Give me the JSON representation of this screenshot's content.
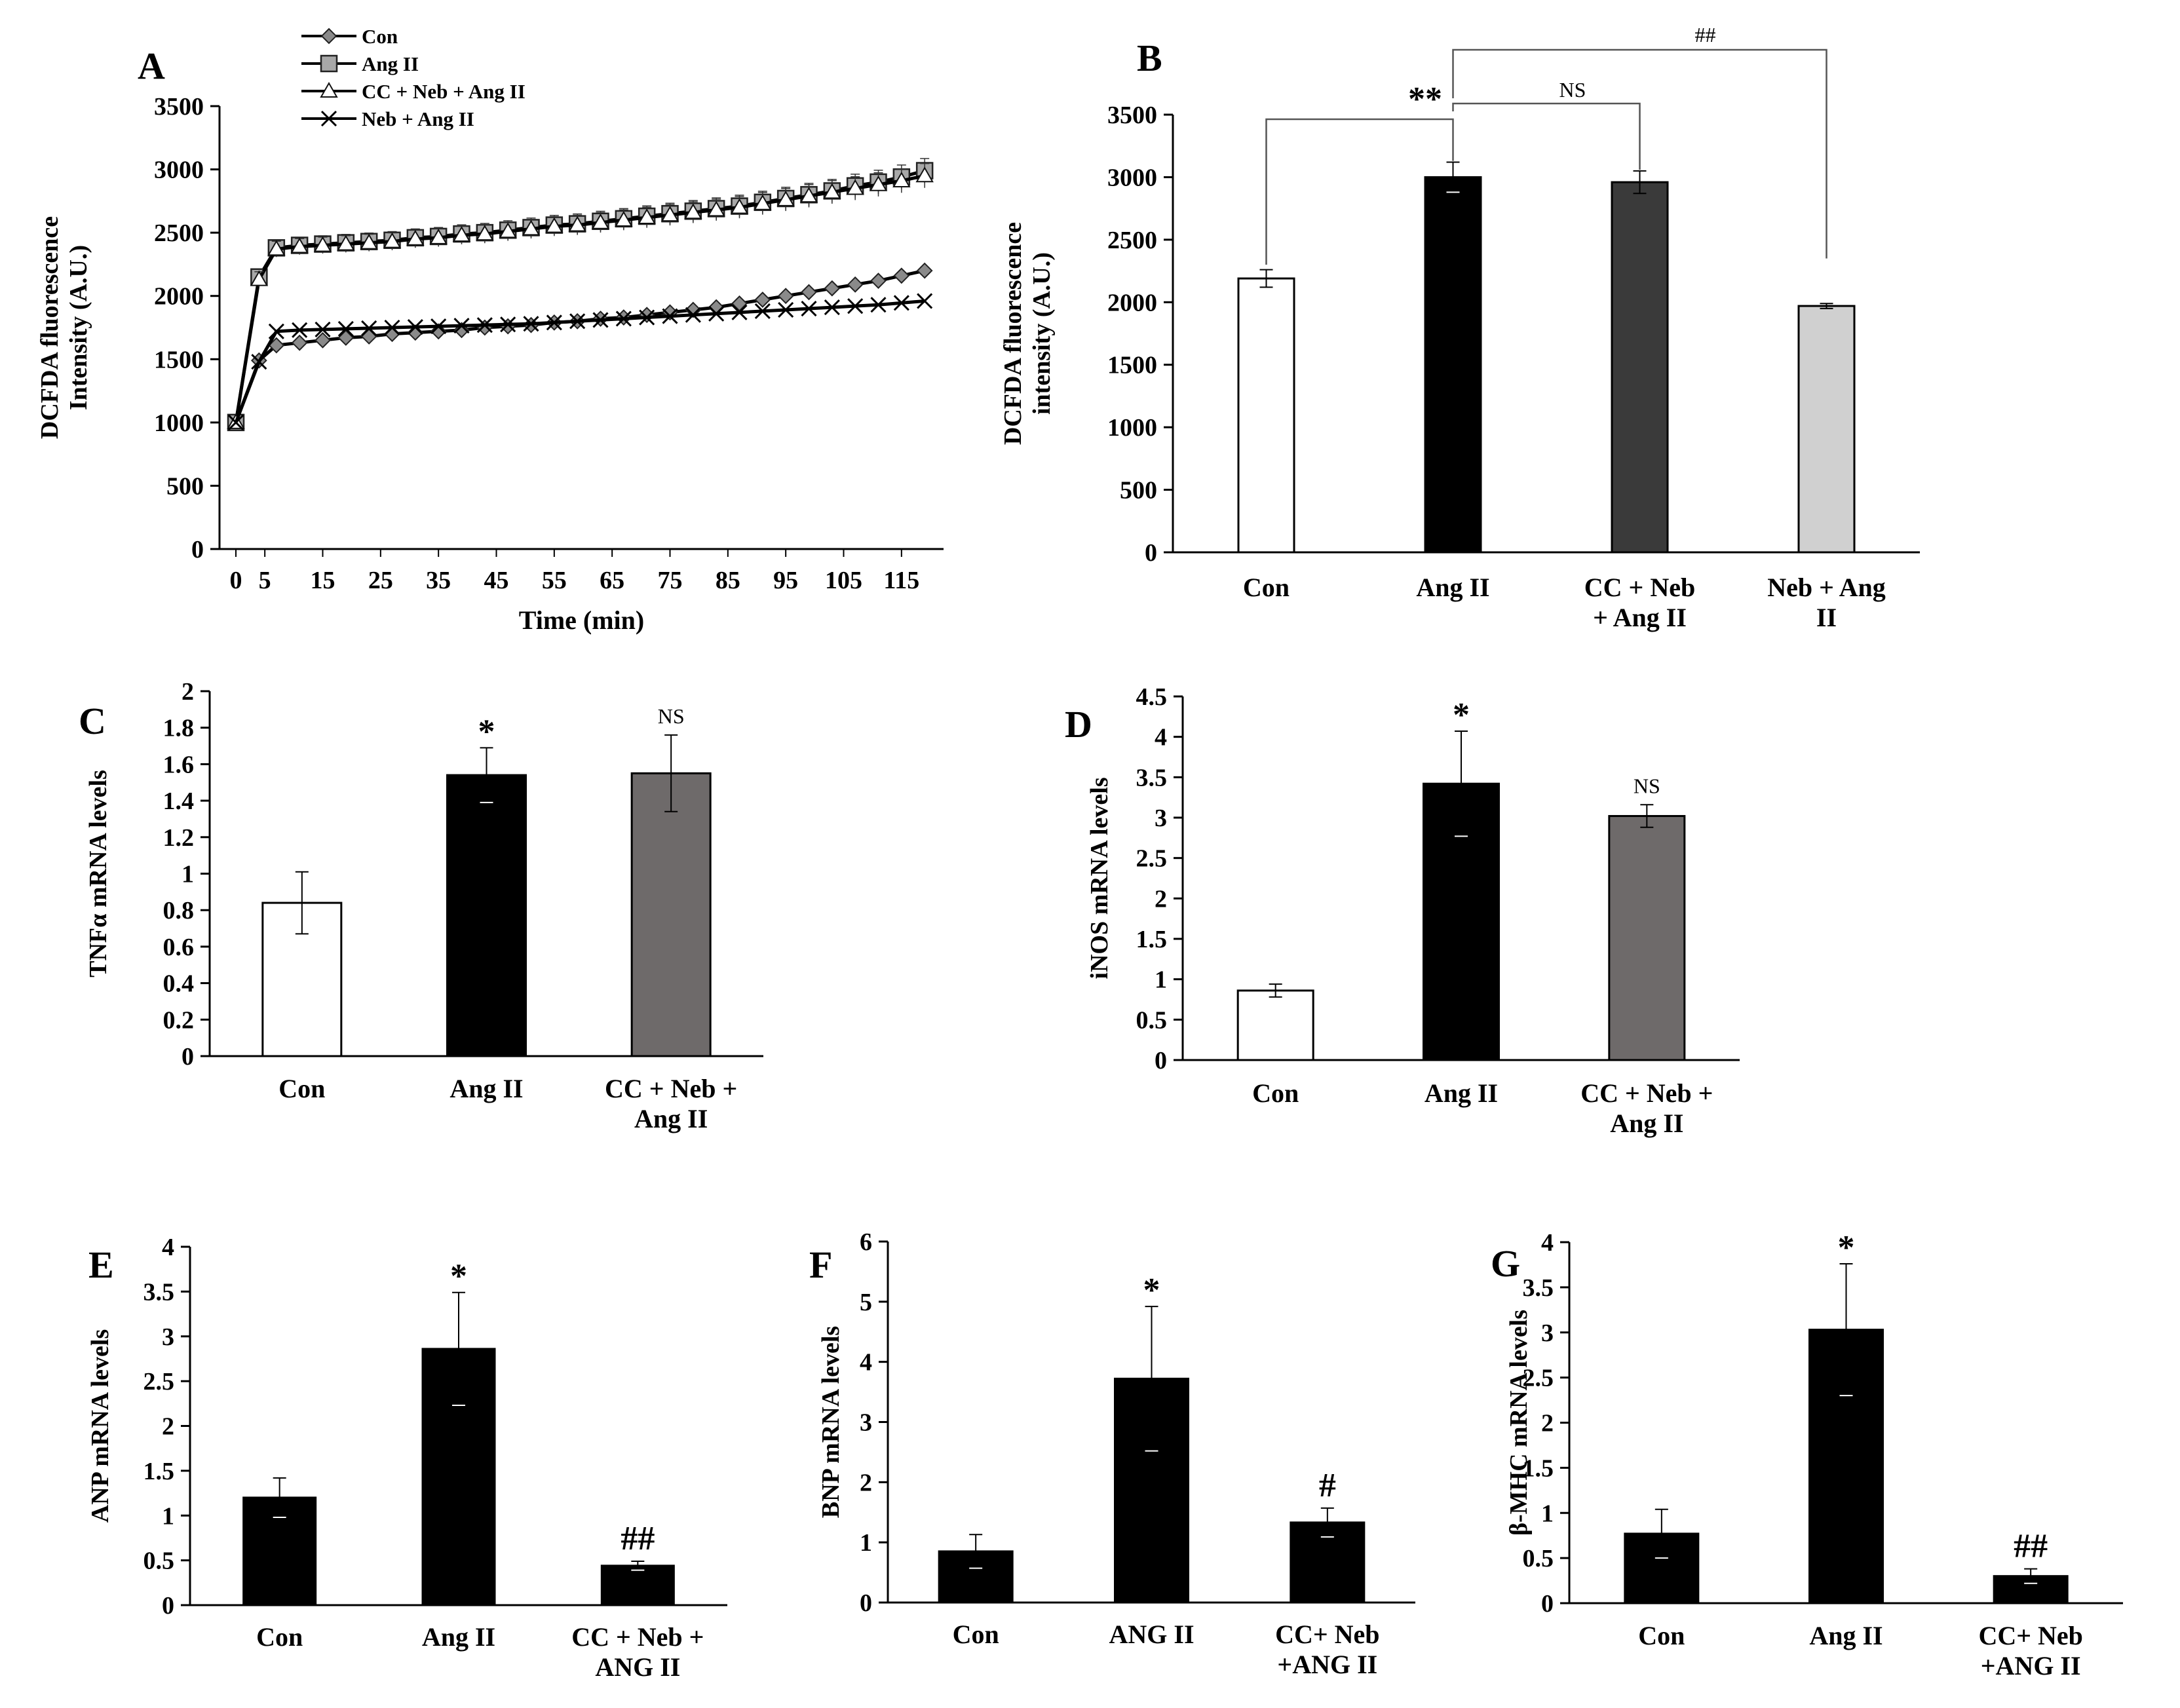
{
  "chart_data": [
    {
      "id": "A",
      "type": "line",
      "panel_label": "A",
      "title": "",
      "xlabel": "Time (min)",
      "ylabel": "DCFDA fluorescence Intensity (A.U.)",
      "ylabel_lines": [
        "DCFDA fluorescence",
        "Intensity (A.U.)"
      ],
      "xlim": [
        0,
        120
      ],
      "ylim": [
        0,
        3500
      ],
      "yticks": [
        0,
        500,
        1000,
        1500,
        2000,
        2500,
        3000,
        3500
      ],
      "xtick_labels": [
        "0",
        "5",
        "15",
        "25",
        "35",
        "45",
        "55",
        "65",
        "75",
        "85",
        "95",
        "105",
        "115"
      ],
      "x": [
        0,
        4,
        7,
        11,
        15,
        19,
        23,
        27,
        31,
        35,
        39,
        43,
        47,
        51,
        55,
        59,
        63,
        67,
        71,
        75,
        79,
        83,
        87,
        91,
        95,
        99,
        103,
        107,
        111,
        115,
        119
      ],
      "legend": [
        "Con",
        "Ang II",
        "CC + Neb + Ang II",
        "Neb + Ang II"
      ],
      "legend_position": "top-left",
      "series": [
        {
          "name": "Con",
          "marker": "diamond",
          "values": [
            1000,
            1490,
            1610,
            1630,
            1650,
            1670,
            1680,
            1700,
            1710,
            1720,
            1730,
            1750,
            1760,
            1770,
            1790,
            1800,
            1820,
            1830,
            1850,
            1870,
            1890,
            1910,
            1940,
            1970,
            2000,
            2030,
            2060,
            2090,
            2120,
            2160,
            2200
          ]
        },
        {
          "name": "Ang II",
          "marker": "square",
          "values": [
            1000,
            2150,
            2380,
            2400,
            2410,
            2420,
            2430,
            2440,
            2460,
            2470,
            2490,
            2500,
            2520,
            2540,
            2560,
            2570,
            2590,
            2610,
            2630,
            2650,
            2670,
            2690,
            2710,
            2740,
            2770,
            2800,
            2830,
            2870,
            2900,
            2940,
            2990
          ]
        },
        {
          "name": "CC + Neb + Ang II",
          "marker": "triangle",
          "values": [
            1000,
            2130,
            2370,
            2390,
            2400,
            2410,
            2420,
            2430,
            2450,
            2460,
            2480,
            2490,
            2510,
            2530,
            2550,
            2560,
            2580,
            2600,
            2620,
            2640,
            2660,
            2680,
            2700,
            2730,
            2760,
            2790,
            2820,
            2850,
            2880,
            2910,
            2950
          ]
        },
        {
          "name": "Neb + Ang II",
          "marker": "x",
          "values": [
            1000,
            1480,
            1720,
            1730,
            1735,
            1740,
            1745,
            1750,
            1755,
            1760,
            1765,
            1770,
            1775,
            1780,
            1790,
            1800,
            1810,
            1820,
            1830,
            1840,
            1850,
            1860,
            1870,
            1880,
            1890,
            1900,
            1910,
            1920,
            1930,
            1945,
            1960
          ]
        }
      ]
    },
    {
      "id": "B",
      "type": "bar",
      "panel_label": "B",
      "ylabel": "DCFDA fluorescence intensity (A.U.)",
      "ylabel_lines": [
        "DCFDA fluorescence",
        "intensity (A.U.)"
      ],
      "categories": [
        "Con",
        "Ang II",
        "CC + Neb + Ang II",
        "Neb + Ang II"
      ],
      "category_lines": [
        [
          "Con"
        ],
        [
          "Ang II"
        ],
        [
          "CC +  Neb",
          "+ Ang II"
        ],
        [
          "Neb + Ang",
          "II"
        ]
      ],
      "values": [
        2190,
        3000,
        2960,
        1970
      ],
      "errors": [
        70,
        120,
        90,
        20
      ],
      "colors": [
        "#ffffff",
        "#000000",
        "#3a3a3a",
        "#d0d0d0"
      ],
      "ylim": [
        0,
        3500
      ],
      "yticks": [
        0,
        500,
        1000,
        1500,
        2000,
        2500,
        3000,
        3500
      ],
      "annotations": [
        "**",
        "NS",
        "##"
      ]
    },
    {
      "id": "C",
      "type": "bar",
      "panel_label": "C",
      "ylabel": "TNFα mRNA levels",
      "categories": [
        "Con",
        "Ang II",
        "CC + Neb + Ang II"
      ],
      "category_lines": [
        [
          "Con"
        ],
        [
          "Ang II"
        ],
        [
          "CC + Neb +",
          "Ang II"
        ]
      ],
      "values": [
        0.84,
        1.54,
        1.55
      ],
      "errors": [
        0.17,
        0.15,
        0.21
      ],
      "colors": [
        "#ffffff",
        "#000000",
        "#6e6a6a"
      ],
      "ylim": [
        0,
        2
      ],
      "yticks": [
        0,
        0.2,
        0.4,
        0.6,
        0.8,
        1,
        1.2,
        1.4,
        1.6,
        1.8,
        2
      ],
      "bar_labels": [
        "",
        "*",
        "NS"
      ]
    },
    {
      "id": "D",
      "type": "bar",
      "panel_label": "D",
      "ylabel": "iNOS mRNA levels",
      "categories": [
        "Con",
        "Ang II",
        "CC + Neb + Ang II"
      ],
      "category_lines": [
        [
          "Con"
        ],
        [
          "Ang II"
        ],
        [
          "CC + Neb +",
          "Ang II"
        ]
      ],
      "values": [
        0.86,
        3.42,
        3.02
      ],
      "errors": [
        0.08,
        0.65,
        0.14
      ],
      "colors": [
        "#ffffff",
        "#000000",
        "#6e6a6a"
      ],
      "ylim": [
        0,
        4.5
      ],
      "yticks": [
        0,
        0.5,
        1,
        1.5,
        2,
        2.5,
        3,
        3.5,
        4,
        4.5
      ],
      "bar_labels": [
        "",
        "*",
        "NS"
      ]
    },
    {
      "id": "E",
      "type": "bar",
      "panel_label": "E",
      "ylabel": "ANP mRNA levels",
      "categories": [
        "Con",
        "Ang II",
        "CC + Neb + ANG II"
      ],
      "category_lines": [
        [
          "Con"
        ],
        [
          "Ang II"
        ],
        [
          "CC + Neb +",
          "ANG II"
        ]
      ],
      "values": [
        1.2,
        2.86,
        0.44
      ],
      "errors": [
        0.22,
        0.63,
        0.05
      ],
      "colors": [
        "#000000",
        "#000000",
        "#000000"
      ],
      "ylim": [
        0,
        4
      ],
      "yticks": [
        0,
        0.5,
        1,
        1.5,
        2,
        2.5,
        3,
        3.5,
        4
      ],
      "bar_labels": [
        "",
        "*",
        "##"
      ]
    },
    {
      "id": "F",
      "type": "bar",
      "panel_label": "F",
      "ylabel": "BNP mRNA levels",
      "categories": [
        "Con",
        "ANG II",
        "CC+ Neb +ANG II"
      ],
      "category_lines": [
        [
          "Con"
        ],
        [
          "ANG II"
        ],
        [
          "CC+ Neb",
          "+ANG II"
        ]
      ],
      "values": [
        0.85,
        3.72,
        1.33
      ],
      "errors": [
        0.28,
        1.2,
        0.24
      ],
      "colors": [
        "#000000",
        "#000000",
        "#000000"
      ],
      "ylim": [
        0,
        6
      ],
      "yticks": [
        0,
        1,
        2,
        3,
        4,
        5,
        6
      ],
      "bar_labels": [
        "",
        "*",
        "#"
      ]
    },
    {
      "id": "G",
      "type": "bar",
      "panel_label": "G",
      "ylabel": "β-MHC mRNA levels",
      "categories": [
        "Con",
        "Ang II",
        "CC+ Neb +ANG II"
      ],
      "category_lines": [
        [
          "Con"
        ],
        [
          "Ang II"
        ],
        [
          "CC+ Neb",
          "+ANG II"
        ]
      ],
      "values": [
        0.77,
        3.03,
        0.3
      ],
      "errors": [
        0.27,
        0.73,
        0.08
      ],
      "colors": [
        "#000000",
        "#000000",
        "#000000"
      ],
      "ylim": [
        0,
        4
      ],
      "yticks": [
        0,
        0.5,
        1,
        1.5,
        2,
        2.5,
        3,
        3.5,
        4
      ],
      "bar_labels": [
        "",
        "*",
        "##"
      ]
    }
  ]
}
